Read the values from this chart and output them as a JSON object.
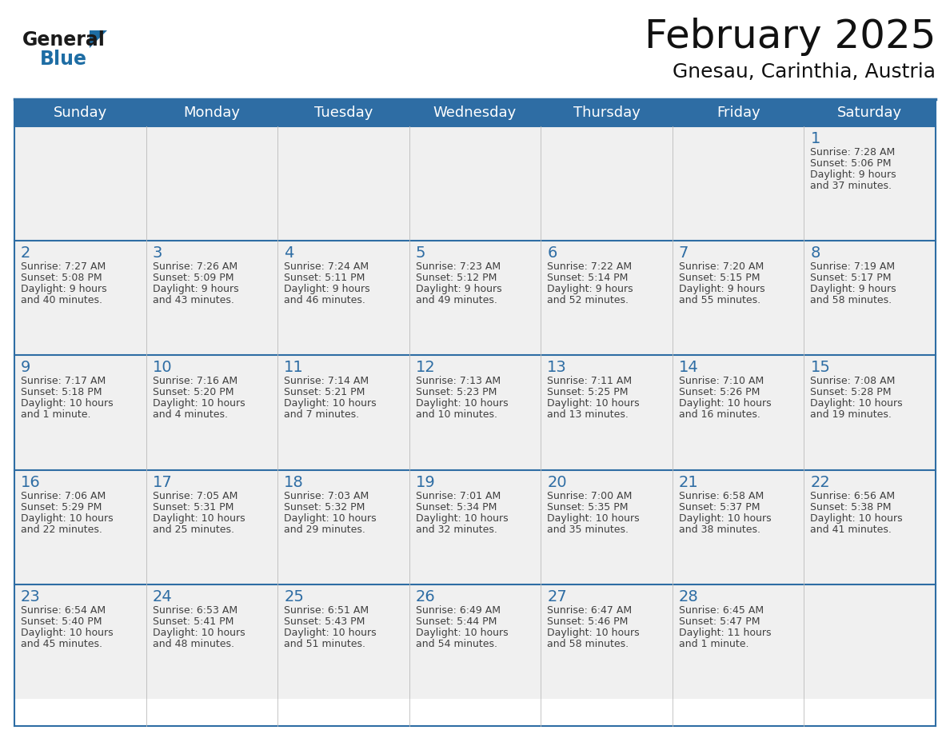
{
  "title": "February 2025",
  "subtitle": "Gnesau, Carinthia, Austria",
  "header_bg": "#2E6DA4",
  "header_text_color": "#FFFFFF",
  "cell_bg": "#F0F0F0",
  "day_number_color": "#2E6DA4",
  "info_text_color": "#404040",
  "border_color": "#2E6DA4",
  "days_of_week": [
    "Sunday",
    "Monday",
    "Tuesday",
    "Wednesday",
    "Thursday",
    "Friday",
    "Saturday"
  ],
  "weeks": [
    [
      {
        "day": null,
        "sunrise": null,
        "sunset": null,
        "daylight": null
      },
      {
        "day": null,
        "sunrise": null,
        "sunset": null,
        "daylight": null
      },
      {
        "day": null,
        "sunrise": null,
        "sunset": null,
        "daylight": null
      },
      {
        "day": null,
        "sunrise": null,
        "sunset": null,
        "daylight": null
      },
      {
        "day": null,
        "sunrise": null,
        "sunset": null,
        "daylight": null
      },
      {
        "day": null,
        "sunrise": null,
        "sunset": null,
        "daylight": null
      },
      {
        "day": 1,
        "sunrise": "7:28 AM",
        "sunset": "5:06 PM",
        "daylight": "9 hours\nand 37 minutes."
      }
    ],
    [
      {
        "day": 2,
        "sunrise": "7:27 AM",
        "sunset": "5:08 PM",
        "daylight": "9 hours\nand 40 minutes."
      },
      {
        "day": 3,
        "sunrise": "7:26 AM",
        "sunset": "5:09 PM",
        "daylight": "9 hours\nand 43 minutes."
      },
      {
        "day": 4,
        "sunrise": "7:24 AM",
        "sunset": "5:11 PM",
        "daylight": "9 hours\nand 46 minutes."
      },
      {
        "day": 5,
        "sunrise": "7:23 AM",
        "sunset": "5:12 PM",
        "daylight": "9 hours\nand 49 minutes."
      },
      {
        "day": 6,
        "sunrise": "7:22 AM",
        "sunset": "5:14 PM",
        "daylight": "9 hours\nand 52 minutes."
      },
      {
        "day": 7,
        "sunrise": "7:20 AM",
        "sunset": "5:15 PM",
        "daylight": "9 hours\nand 55 minutes."
      },
      {
        "day": 8,
        "sunrise": "7:19 AM",
        "sunset": "5:17 PM",
        "daylight": "9 hours\nand 58 minutes."
      }
    ],
    [
      {
        "day": 9,
        "sunrise": "7:17 AM",
        "sunset": "5:18 PM",
        "daylight": "10 hours\nand 1 minute."
      },
      {
        "day": 10,
        "sunrise": "7:16 AM",
        "sunset": "5:20 PM",
        "daylight": "10 hours\nand 4 minutes."
      },
      {
        "day": 11,
        "sunrise": "7:14 AM",
        "sunset": "5:21 PM",
        "daylight": "10 hours\nand 7 minutes."
      },
      {
        "day": 12,
        "sunrise": "7:13 AM",
        "sunset": "5:23 PM",
        "daylight": "10 hours\nand 10 minutes."
      },
      {
        "day": 13,
        "sunrise": "7:11 AM",
        "sunset": "5:25 PM",
        "daylight": "10 hours\nand 13 minutes."
      },
      {
        "day": 14,
        "sunrise": "7:10 AM",
        "sunset": "5:26 PM",
        "daylight": "10 hours\nand 16 minutes."
      },
      {
        "day": 15,
        "sunrise": "7:08 AM",
        "sunset": "5:28 PM",
        "daylight": "10 hours\nand 19 minutes."
      }
    ],
    [
      {
        "day": 16,
        "sunrise": "7:06 AM",
        "sunset": "5:29 PM",
        "daylight": "10 hours\nand 22 minutes."
      },
      {
        "day": 17,
        "sunrise": "7:05 AM",
        "sunset": "5:31 PM",
        "daylight": "10 hours\nand 25 minutes."
      },
      {
        "day": 18,
        "sunrise": "7:03 AM",
        "sunset": "5:32 PM",
        "daylight": "10 hours\nand 29 minutes."
      },
      {
        "day": 19,
        "sunrise": "7:01 AM",
        "sunset": "5:34 PM",
        "daylight": "10 hours\nand 32 minutes."
      },
      {
        "day": 20,
        "sunrise": "7:00 AM",
        "sunset": "5:35 PM",
        "daylight": "10 hours\nand 35 minutes."
      },
      {
        "day": 21,
        "sunrise": "6:58 AM",
        "sunset": "5:37 PM",
        "daylight": "10 hours\nand 38 minutes."
      },
      {
        "day": 22,
        "sunrise": "6:56 AM",
        "sunset": "5:38 PM",
        "daylight": "10 hours\nand 41 minutes."
      }
    ],
    [
      {
        "day": 23,
        "sunrise": "6:54 AM",
        "sunset": "5:40 PM",
        "daylight": "10 hours\nand 45 minutes."
      },
      {
        "day": 24,
        "sunrise": "6:53 AM",
        "sunset": "5:41 PM",
        "daylight": "10 hours\nand 48 minutes."
      },
      {
        "day": 25,
        "sunrise": "6:51 AM",
        "sunset": "5:43 PM",
        "daylight": "10 hours\nand 51 minutes."
      },
      {
        "day": 26,
        "sunrise": "6:49 AM",
        "sunset": "5:44 PM",
        "daylight": "10 hours\nand 54 minutes."
      },
      {
        "day": 27,
        "sunrise": "6:47 AM",
        "sunset": "5:46 PM",
        "daylight": "10 hours\nand 58 minutes."
      },
      {
        "day": 28,
        "sunrise": "6:45 AM",
        "sunset": "5:47 PM",
        "daylight": "11 hours\nand 1 minute."
      },
      {
        "day": null,
        "sunrise": null,
        "sunset": null,
        "daylight": null
      }
    ]
  ],
  "logo_color_general": "#1a1a1a",
  "logo_color_blue": "#1E6DA4",
  "title_fontsize": 36,
  "subtitle_fontsize": 18,
  "header_fontsize": 13,
  "day_num_fontsize": 14,
  "cell_text_fontsize": 9
}
